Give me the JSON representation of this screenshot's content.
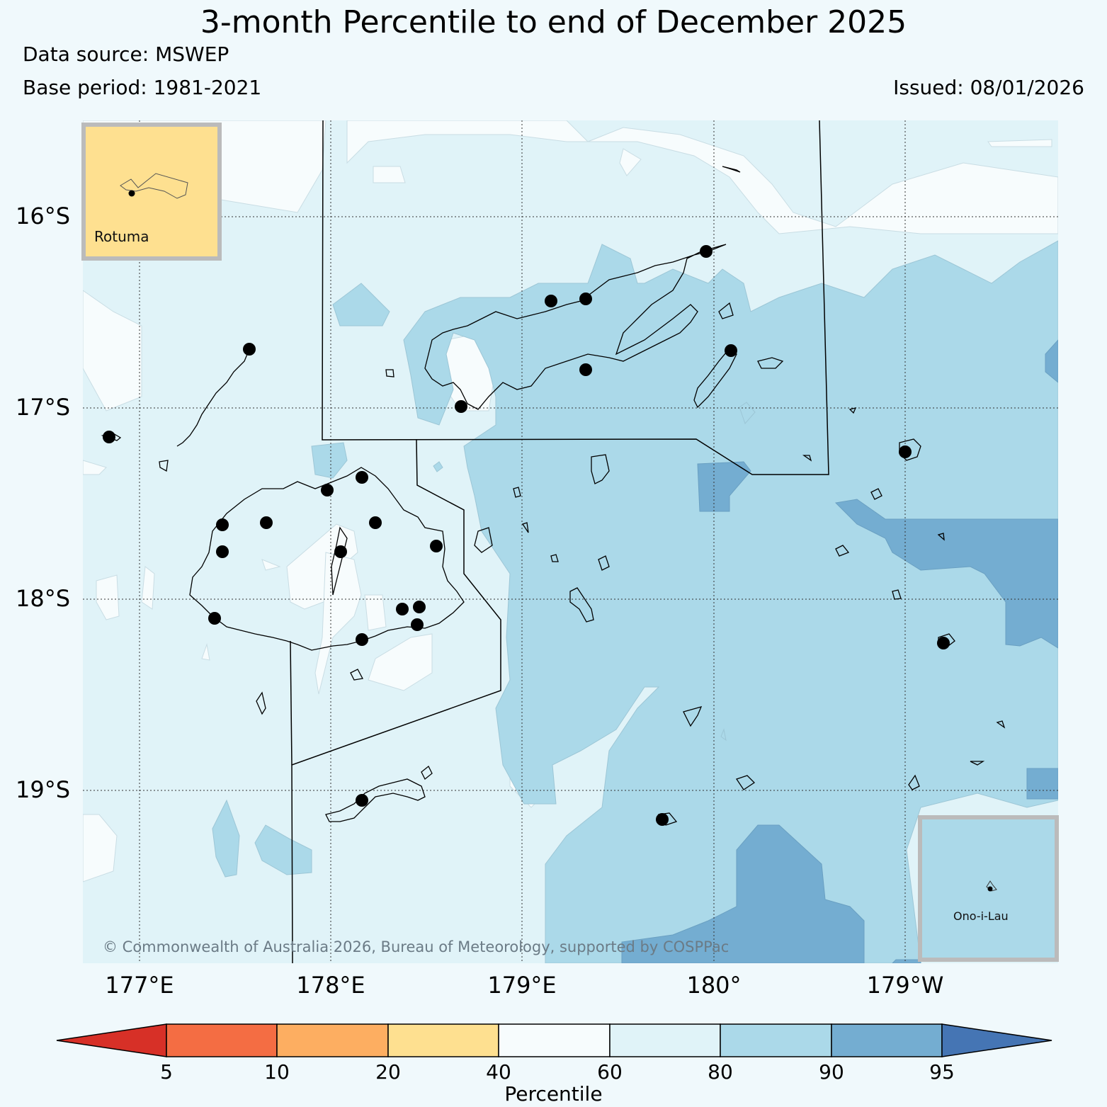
{
  "title": "3-month Percentile to end of December 2025",
  "data_source": "Data source: MSWEP",
  "base_period": "Base period: 1981-2021",
  "issued": "Issued: 08/01/2026",
  "copyright": "© Commonwealth of Australia 2026, Bureau of Meteorology, supported by COSPPac",
  "lat_labels": [
    "16°S",
    "17°S",
    "18°S",
    "19°S"
  ],
  "lon_labels": [
    "177°E",
    "178°E",
    "179°E",
    "180°",
    "179°W"
  ],
  "insets": {
    "rotuma": "Rotuma",
    "ono_i_lau": "Ono-i-Lau"
  },
  "colorbar": {
    "title": "Percentile",
    "ticks": [
      "5",
      "10",
      "20",
      "40",
      "60",
      "80",
      "90",
      "95"
    ],
    "colors": [
      "#d73027",
      "#f46d43",
      "#fdae61",
      "#fee090",
      "#f7fcfd",
      "#e0f3f8",
      "#abd9e9",
      "#74add1",
      "#4575b4"
    ]
  },
  "category_colors": {
    "p40_60": "#f7fcfd",
    "p60_80": "#e0f3f8",
    "p80_90": "#abd9e9",
    "p90_95": "#74add1"
  }
}
